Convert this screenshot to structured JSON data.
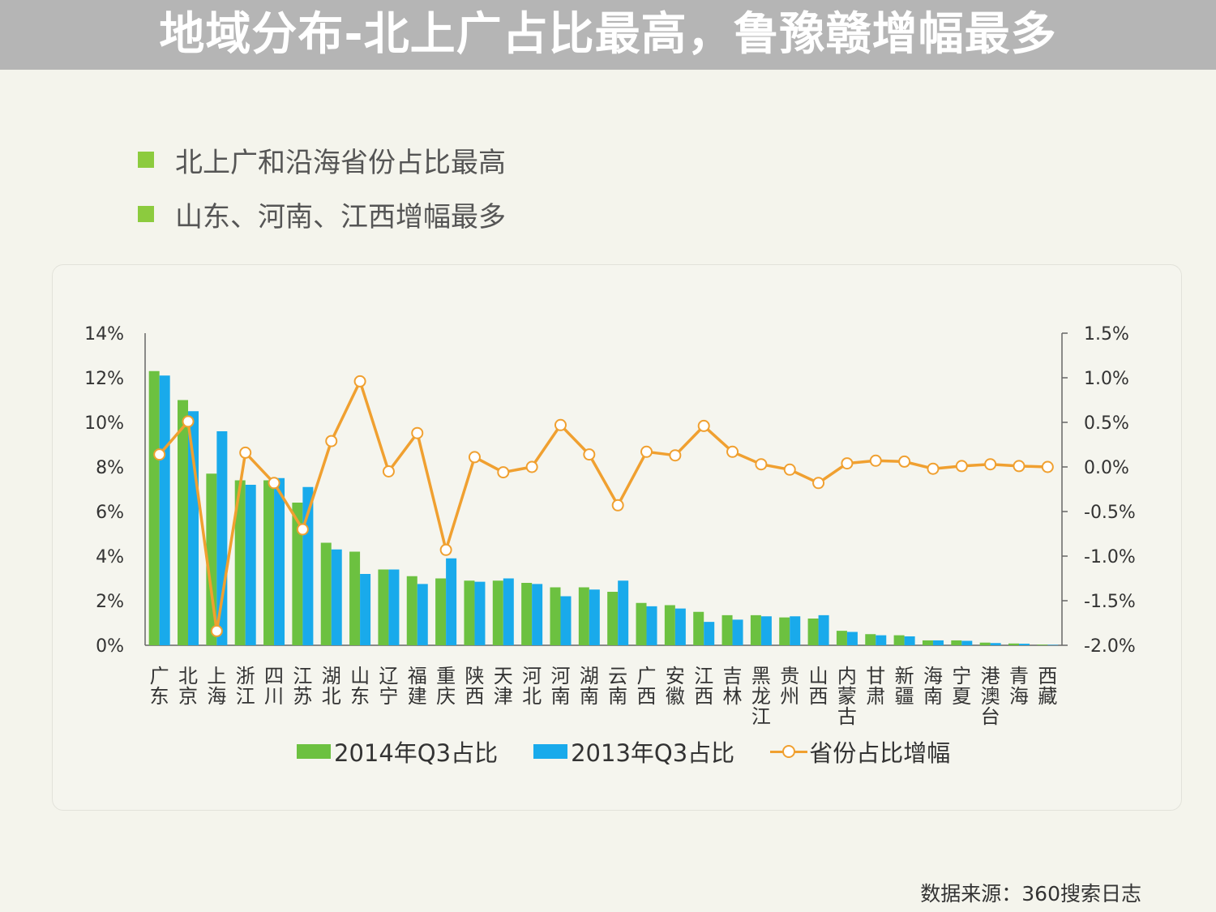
{
  "title": "地域分布-北上广占比最高，鲁豫赣增幅最多",
  "bullets": [
    "北上广和沿海省份占比最高",
    "山东、河南、江西增幅最多"
  ],
  "source": "数据来源：360搜索日志",
  "colors": {
    "series_2014": "#6cc140",
    "series_2013": "#19aaeb",
    "growth": "#f0a030",
    "bullet": "#8ccb3e"
  },
  "chart_data": {
    "type": "bar+line",
    "title": "",
    "categories": [
      "广东",
      "北京",
      "上海",
      "浙江",
      "四川",
      "江苏",
      "湖北",
      "山东",
      "辽宁",
      "福建",
      "重庆",
      "陕西",
      "天津",
      "河北",
      "河南",
      "湖南",
      "云南",
      "广西",
      "安徽",
      "江西",
      "吉林",
      "黑龙江",
      "贵州",
      "山西",
      "内蒙古",
      "甘肃",
      "新疆",
      "海南",
      "宁夏",
      "港澳台",
      "青海",
      "西藏"
    ],
    "y_left": {
      "ticks": [
        "14%",
        "12%",
        "10%",
        "8%",
        "6%",
        "4%",
        "2%",
        "0%"
      ],
      "min": 0,
      "max": 14
    },
    "y_right": {
      "ticks": [
        "1.5%",
        "1.0%",
        "0.5%",
        "0.0%",
        "-0.5%",
        "-1.0%",
        "-1.5%",
        "-2.0%"
      ],
      "min": -2.0,
      "max": 1.5
    },
    "series": [
      {
        "name": "2014年Q3占比",
        "axis": "left",
        "kind": "bar",
        "values": [
          12.3,
          11.0,
          7.7,
          7.4,
          7.4,
          6.4,
          4.6,
          4.2,
          3.4,
          3.1,
          3.0,
          2.9,
          2.9,
          2.8,
          2.6,
          2.6,
          2.4,
          1.9,
          1.8,
          1.5,
          1.35,
          1.35,
          1.25,
          1.2,
          0.65,
          0.5,
          0.45,
          0.22,
          0.22,
          0.12,
          0.08,
          0.03
        ]
      },
      {
        "name": "2013年Q3占比",
        "axis": "left",
        "kind": "bar",
        "values": [
          12.1,
          10.5,
          9.6,
          7.2,
          7.5,
          7.1,
          4.3,
          3.2,
          3.4,
          2.75,
          3.9,
          2.85,
          3.0,
          2.75,
          2.2,
          2.5,
          2.9,
          1.75,
          1.65,
          1.05,
          1.15,
          1.3,
          1.3,
          1.35,
          0.6,
          0.45,
          0.4,
          0.22,
          0.2,
          0.1,
          0.07,
          0.02
        ]
      },
      {
        "name": "省份占比增幅",
        "axis": "right",
        "kind": "line",
        "values": [
          0.14,
          0.51,
          -1.84,
          0.16,
          -0.18,
          -0.7,
          0.29,
          0.96,
          -0.05,
          0.38,
          -0.93,
          0.11,
          -0.06,
          0.0,
          0.47,
          0.14,
          -0.43,
          0.17,
          0.13,
          0.46,
          0.17,
          0.03,
          -0.03,
          -0.18,
          0.04,
          0.07,
          0.06,
          -0.02,
          0.01,
          0.03,
          0.01,
          0.0
        ]
      }
    ],
    "legend_position": "bottom"
  }
}
